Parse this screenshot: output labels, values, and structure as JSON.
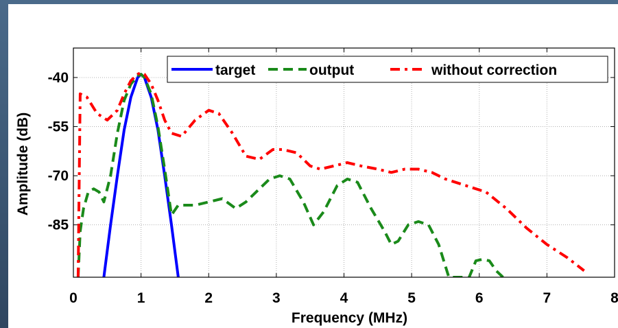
{
  "chart_data": {
    "type": "line",
    "title": "",
    "xlabel": "Frequency (MHz)",
    "ylabel": "Amplitude (dB)",
    "xlim": [
      0,
      8
    ],
    "ylim": [
      -101,
      -31
    ],
    "xticks": [
      "0",
      "1",
      "2",
      "3",
      "4",
      "5",
      "6",
      "7",
      "8"
    ],
    "yticks": [
      {
        "value": -40,
        "label": "-40"
      },
      {
        "value": -55,
        "label": "-55"
      },
      {
        "value": -70,
        "label": "-70"
      },
      {
        "value": -85,
        "label": "-85"
      }
    ],
    "grid": true,
    "legend_position": "top-right",
    "series": [
      {
        "name": "target",
        "color": "#0000ff",
        "style": "solid",
        "x": [
          0.45,
          0.55,
          0.65,
          0.75,
          0.85,
          0.95,
          1.0,
          1.05,
          1.15,
          1.25,
          1.35,
          1.45,
          1.55
        ],
        "y": [
          -101,
          -85,
          -70,
          -56,
          -46,
          -40,
          -39,
          -40,
          -46,
          -56,
          -70,
          -85,
          -101
        ]
      },
      {
        "name": "output",
        "color": "#1a8a1a",
        "style": "dashed",
        "x": [
          0.07,
          0.1,
          0.15,
          0.22,
          0.3,
          0.38,
          0.45,
          0.55,
          0.65,
          0.75,
          0.85,
          0.95,
          1.0,
          1.05,
          1.15,
          1.25,
          1.35,
          1.45,
          1.55,
          1.65,
          1.8,
          2.0,
          2.2,
          2.4,
          2.55,
          2.7,
          2.9,
          3.05,
          3.2,
          3.4,
          3.55,
          3.7,
          3.9,
          4.05,
          4.2,
          4.4,
          4.6,
          4.7,
          4.8,
          4.95,
          5.1,
          5.25,
          5.4,
          5.55,
          5.65,
          5.75,
          5.85,
          5.95,
          6.05,
          6.15,
          6.25,
          6.35
        ],
        "y": [
          -101,
          -87,
          -80,
          -75,
          -74,
          -75,
          -78,
          -70,
          -57,
          -47,
          -42,
          -39.5,
          -39,
          -40,
          -45,
          -55,
          -68,
          -82,
          -79,
          -79,
          -79,
          -78,
          -77,
          -80,
          -78,
          -75,
          -71,
          -70,
          -71,
          -78,
          -85,
          -81,
          -73,
          -71,
          -72,
          -80,
          -87,
          -91,
          -90,
          -85,
          -84,
          -85,
          -91,
          -101,
          -101,
          -101,
          -101,
          -96,
          -95.5,
          -96,
          -99,
          -101
        ]
      },
      {
        "name": "without correction",
        "color": "#ff0000",
        "style": "dashdot",
        "x": [
          0.07,
          0.1,
          0.2,
          0.35,
          0.5,
          0.65,
          0.75,
          0.85,
          0.95,
          1.0,
          1.05,
          1.15,
          1.25,
          1.35,
          1.45,
          1.6,
          1.8,
          2.0,
          2.15,
          2.35,
          2.55,
          2.75,
          2.95,
          3.1,
          3.3,
          3.5,
          3.65,
          3.85,
          4.05,
          4.25,
          4.5,
          4.7,
          4.9,
          5.1,
          5.3,
          5.5,
          5.8,
          6.1,
          6.4,
          6.7,
          7.0,
          7.3,
          7.55
        ],
        "y": [
          -101,
          -45,
          -46,
          -51,
          -53,
          -50,
          -45,
          -41,
          -39,
          -38.5,
          -39,
          -42,
          -47,
          -53,
          -57,
          -58,
          -53,
          -50,
          -51,
          -57,
          -64,
          -65,
          -62,
          -62,
          -63,
          -67,
          -68,
          -67,
          -66,
          -67,
          -68,
          -69,
          -68,
          -68,
          -69,
          -71,
          -73,
          -75,
          -80,
          -86,
          -91,
          -95,
          -99
        ]
      }
    ]
  }
}
